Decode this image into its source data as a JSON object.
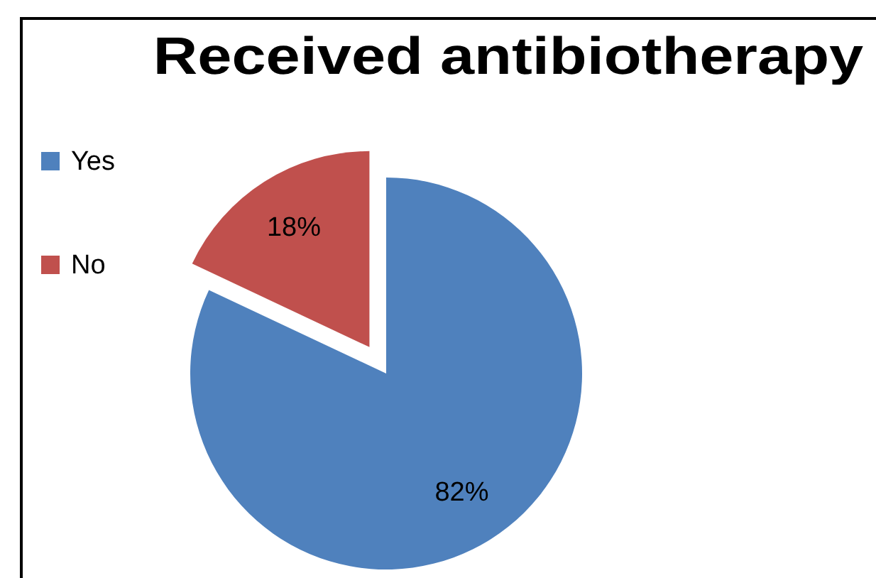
{
  "chart_data": {
    "type": "pie",
    "title": "Received antibiotherapy",
    "categories": [
      "Yes",
      "No"
    ],
    "values": [
      82,
      18
    ],
    "colors": [
      "#4f81bd",
      "#c0504d"
    ],
    "value_labels": [
      "82%",
      "18%"
    ],
    "legend": "left"
  }
}
